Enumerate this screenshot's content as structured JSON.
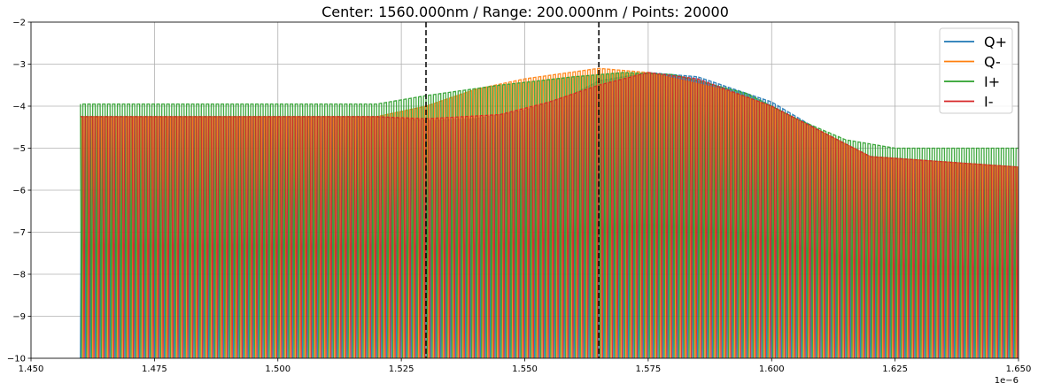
{
  "chart_data": {
    "type": "line",
    "title": "Center: 1560.000nm / Range: 200.000nm / Points: 20000",
    "xlabel": "",
    "ylabel": "",
    "x_offset_label": "1e−6",
    "xlim": [
      1.45,
      1.65
    ],
    "ylim": [
      -10,
      -2
    ],
    "x_ticks": [
      "1.450",
      "1.475",
      "1.500",
      "1.525",
      "1.550",
      "1.575",
      "1.600",
      "1.625",
      "1.650"
    ],
    "x_tick_values": [
      1.45,
      1.475,
      1.5,
      1.525,
      1.55,
      1.575,
      1.6,
      1.625,
      1.65
    ],
    "y_ticks": [
      "−10",
      "−9",
      "−8",
      "−7",
      "−6",
      "−5",
      "−4",
      "−3",
      "−2"
    ],
    "y_tick_values": [
      -10,
      -9,
      -8,
      -7,
      -6,
      -5,
      -4,
      -3,
      -2
    ],
    "grid": true,
    "legend_position": "top-right",
    "vertical_markers": [
      {
        "x": 1.53,
        "style": "dashed",
        "color": "#000000"
      },
      {
        "x": 1.565,
        "style": "dashed",
        "color": "#000000"
      }
    ],
    "data_x_range": [
      1.46,
      1.65
    ],
    "fringe_period": 0.001,
    "series": [
      {
        "name": "Q+",
        "color": "#1f77b4",
        "min": -10,
        "envelope": [
          [
            1.46,
            -4.25
          ],
          [
            1.52,
            -4.25
          ],
          [
            1.53,
            -4.35
          ],
          [
            1.54,
            -4.3
          ],
          [
            1.55,
            -4.1
          ],
          [
            1.56,
            -3.7
          ],
          [
            1.565,
            -3.4
          ],
          [
            1.575,
            -3.2
          ],
          [
            1.585,
            -3.3
          ],
          [
            1.6,
            -3.9
          ],
          [
            1.61,
            -4.6
          ],
          [
            1.62,
            -5.2
          ],
          [
            1.65,
            -5.45
          ]
        ],
        "phase": 0.25
      },
      {
        "name": "Q-",
        "color": "#ff7f0e",
        "min": -10,
        "envelope": [
          [
            1.46,
            -4.25
          ],
          [
            1.52,
            -4.25
          ],
          [
            1.53,
            -4.0
          ],
          [
            1.54,
            -3.6
          ],
          [
            1.55,
            -3.35
          ],
          [
            1.565,
            -3.1
          ],
          [
            1.575,
            -3.2
          ],
          [
            1.59,
            -3.6
          ],
          [
            1.6,
            -4.0
          ],
          [
            1.61,
            -4.6
          ],
          [
            1.62,
            -5.2
          ],
          [
            1.65,
            -5.45
          ]
        ],
        "phase": 0.75
      },
      {
        "name": "I+",
        "color": "#2ca02c",
        "min": -10,
        "envelope": [
          [
            1.46,
            -3.95
          ],
          [
            1.52,
            -3.95
          ],
          [
            1.53,
            -3.75
          ],
          [
            1.545,
            -3.5
          ],
          [
            1.56,
            -3.3
          ],
          [
            1.57,
            -3.2
          ],
          [
            1.58,
            -3.25
          ],
          [
            1.595,
            -3.7
          ],
          [
            1.605,
            -4.3
          ],
          [
            1.615,
            -4.8
          ],
          [
            1.625,
            -5.0
          ],
          [
            1.65,
            -5.0
          ]
        ],
        "phase": 0.0
      },
      {
        "name": "I-",
        "color": "#d62728",
        "min": -10,
        "envelope": [
          [
            1.46,
            -4.25
          ],
          [
            1.52,
            -4.25
          ],
          [
            1.53,
            -4.3
          ],
          [
            1.545,
            -4.2
          ],
          [
            1.555,
            -3.9
          ],
          [
            1.565,
            -3.5
          ],
          [
            1.575,
            -3.2
          ],
          [
            1.585,
            -3.35
          ],
          [
            1.6,
            -4.0
          ],
          [
            1.61,
            -4.6
          ],
          [
            1.62,
            -5.2
          ],
          [
            1.65,
            -5.45
          ]
        ],
        "phase": 0.5
      }
    ]
  }
}
